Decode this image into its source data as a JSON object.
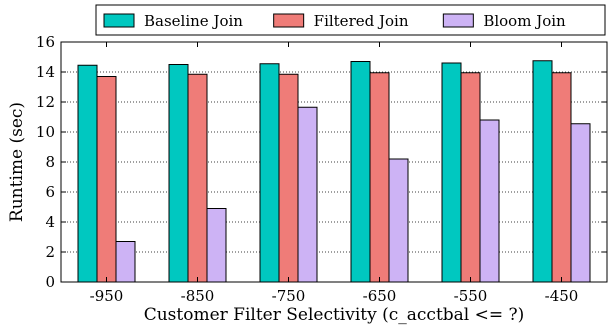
{
  "chart_data": {
    "type": "bar",
    "title": "",
    "xlabel": "Customer Filter Selectivity (c_acctbal <= ?)",
    "ylabel": "Runtime (sec)",
    "categories": [
      "-950",
      "-850",
      "-750",
      "-650",
      "-550",
      "-450"
    ],
    "series": [
      {
        "name": "Baseline Join",
        "color": "#00c8c0",
        "values": [
          14.45,
          14.5,
          14.55,
          14.7,
          14.6,
          14.75
        ]
      },
      {
        "name": "Filtered Join",
        "color": "#ef7c78",
        "values": [
          13.7,
          13.85,
          13.85,
          13.95,
          13.95,
          13.95
        ]
      },
      {
        "name": "Bloom Join",
        "color": "#cdb3f5",
        "values": [
          2.7,
          4.9,
          11.65,
          8.2,
          10.8,
          10.55
        ]
      }
    ],
    "ylim": [
      0,
      16
    ],
    "yticks": [
      0,
      2,
      4,
      6,
      8,
      10,
      12,
      14,
      16
    ],
    "grid": "horizontal-dotted",
    "legend_position": "top"
  }
}
